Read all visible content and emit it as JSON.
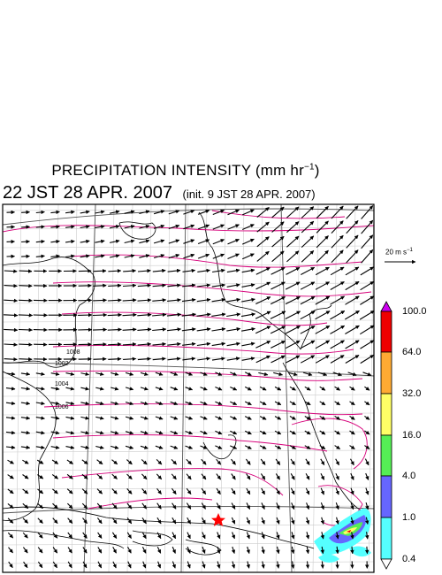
{
  "title": {
    "main": "PRECIPITATION INTENSITY (mm hr",
    "unit_sup": "−1",
    "close": ")"
  },
  "subtitle": {
    "time": "22 JST 28 APR. 2007",
    "init": "(init. 9 JST 28 APR. 2007)"
  },
  "vector_key": {
    "label": "20 m s",
    "unit_sup": "−1"
  },
  "isobar_labels": [
    "1002",
    "1004",
    "1006",
    "1008"
  ],
  "colorbar": {
    "labels": [
      "100.0",
      "64.0",
      "32.0",
      "16.0",
      "4.0",
      "1.0",
      "0.4"
    ],
    "colors": [
      "#cc00ee",
      "#ee0000",
      "#ffaa33",
      "#ffff66",
      "#55ee55",
      "#6666ff",
      "#55ffff",
      "#ffffff"
    ]
  },
  "marker": {
    "name": "star",
    "color": "#ff0000"
  }
}
